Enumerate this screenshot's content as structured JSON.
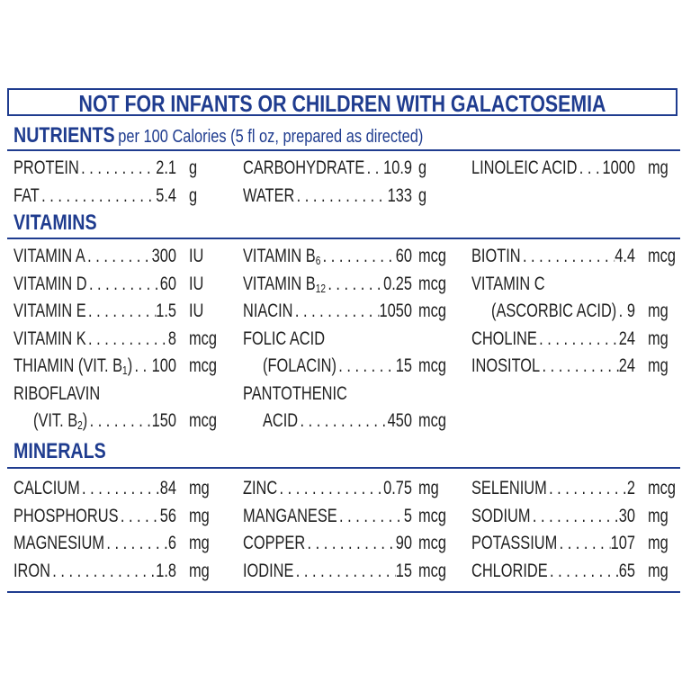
{
  "warning": "NOT FOR INFANTS OR CHILDREN WITH GALACTOSEMIA",
  "nutrients": {
    "heading": "NUTRIENTS",
    "subheading": "per 100 Calories (5 fl oz, prepared as directed)",
    "items": [
      {
        "col": 0,
        "row": 0,
        "name": "PROTEIN",
        "value": "2.1",
        "unit": "g"
      },
      {
        "col": 0,
        "row": 1,
        "name": "FAT",
        "value": "5.4",
        "unit": "g"
      },
      {
        "col": 1,
        "row": 0,
        "name": "CARBOHYDRATE",
        "value": "10.9",
        "unit": "g"
      },
      {
        "col": 1,
        "row": 1,
        "name": "WATER",
        "value": "133",
        "unit": "g"
      },
      {
        "col": 2,
        "row": 0,
        "name": "LINOLEIC ACID",
        "value": "1000",
        "unit": "mg"
      }
    ]
  },
  "vitamins": {
    "heading": "VITAMINS",
    "items": [
      {
        "col": 0,
        "row": 0,
        "name": "VITAMIN A",
        "value": "300",
        "unit": "IU"
      },
      {
        "col": 0,
        "row": 1,
        "name": "VITAMIN D",
        "value": "60",
        "unit": "IU"
      },
      {
        "col": 0,
        "row": 2,
        "name": "VITAMIN E",
        "value": "1.5",
        "unit": "IU"
      },
      {
        "col": 0,
        "row": 3,
        "name": "VITAMIN K",
        "value": "8",
        "unit": "mcg"
      },
      {
        "col": 0,
        "row": 4,
        "name": "THIAMIN (VIT. B",
        "sub": "1",
        "post": ")",
        "value": "100",
        "unit": "mcg"
      },
      {
        "col": 0,
        "row": 5,
        "label_only": true,
        "name": "RIBOFLAVIN"
      },
      {
        "col": 0,
        "row": 6,
        "indent": true,
        "name": "(VIT. B",
        "sub": "2",
        "post": ")",
        "value": "150",
        "unit": "mcg"
      },
      {
        "col": 1,
        "row": 0,
        "name": "VITAMIN B",
        "sub": "6",
        "value": "60",
        "unit": "mcg"
      },
      {
        "col": 1,
        "row": 1,
        "name": "VITAMIN B",
        "sub": "12",
        "value": "0.25",
        "unit": "mcg"
      },
      {
        "col": 1,
        "row": 2,
        "name": "NIACIN",
        "value": "1050",
        "unit": "mcg"
      },
      {
        "col": 1,
        "row": 3,
        "label_only": true,
        "name": "FOLIC ACID"
      },
      {
        "col": 1,
        "row": 4,
        "indent": true,
        "name": "(FOLACIN)",
        "value": "15",
        "unit": "mcg"
      },
      {
        "col": 1,
        "row": 5,
        "label_only": true,
        "name": "PANTOTHENIC"
      },
      {
        "col": 1,
        "row": 6,
        "indent": true,
        "name": "ACID",
        "value": "450",
        "unit": "mcg"
      },
      {
        "col": 2,
        "row": 0,
        "name": "BIOTIN",
        "value": "4.4",
        "unit": "mcg"
      },
      {
        "col": 2,
        "row": 1,
        "label_only": true,
        "name": "VITAMIN C"
      },
      {
        "col": 2,
        "row": 2,
        "indent": true,
        "name": "(ASCORBIC ACID)",
        "value": "9",
        "unit": "mg"
      },
      {
        "col": 2,
        "row": 3,
        "name": "CHOLINE",
        "value": "24",
        "unit": "mg"
      },
      {
        "col": 2,
        "row": 4,
        "name": "INOSITOL",
        "value": "24",
        "unit": "mg"
      }
    ]
  },
  "minerals": {
    "heading": "MINERALS",
    "items": [
      {
        "col": 0,
        "row": 0,
        "name": "CALCIUM",
        "value": "84",
        "unit": "mg"
      },
      {
        "col": 0,
        "row": 1,
        "name": "PHOSPHORUS",
        "value": "56",
        "unit": "mg"
      },
      {
        "col": 0,
        "row": 2,
        "name": "MAGNESIUM",
        "value": "6",
        "unit": "mg"
      },
      {
        "col": 0,
        "row": 3,
        "name": "IRON",
        "value": "1.8",
        "unit": "mg"
      },
      {
        "col": 1,
        "row": 0,
        "name": "ZINC",
        "value": "0.75",
        "unit": "mg"
      },
      {
        "col": 1,
        "row": 1,
        "name": "MANGANESE",
        "value": "5",
        "unit": "mcg"
      },
      {
        "col": 1,
        "row": 2,
        "name": "COPPER",
        "value": "90",
        "unit": "mcg"
      },
      {
        "col": 1,
        "row": 3,
        "name": "IODINE",
        "value": "15",
        "unit": "mcg"
      },
      {
        "col": 2,
        "row": 0,
        "name": "SELENIUM",
        "value": "2",
        "unit": "mcg"
      },
      {
        "col": 2,
        "row": 1,
        "name": "SODIUM",
        "value": "30",
        "unit": "mg"
      },
      {
        "col": 2,
        "row": 2,
        "name": "POTASSIUM",
        "value": "107",
        "unit": "mg"
      },
      {
        "col": 2,
        "row": 3,
        "name": "CHLORIDE",
        "value": "65",
        "unit": "mg"
      }
    ]
  }
}
